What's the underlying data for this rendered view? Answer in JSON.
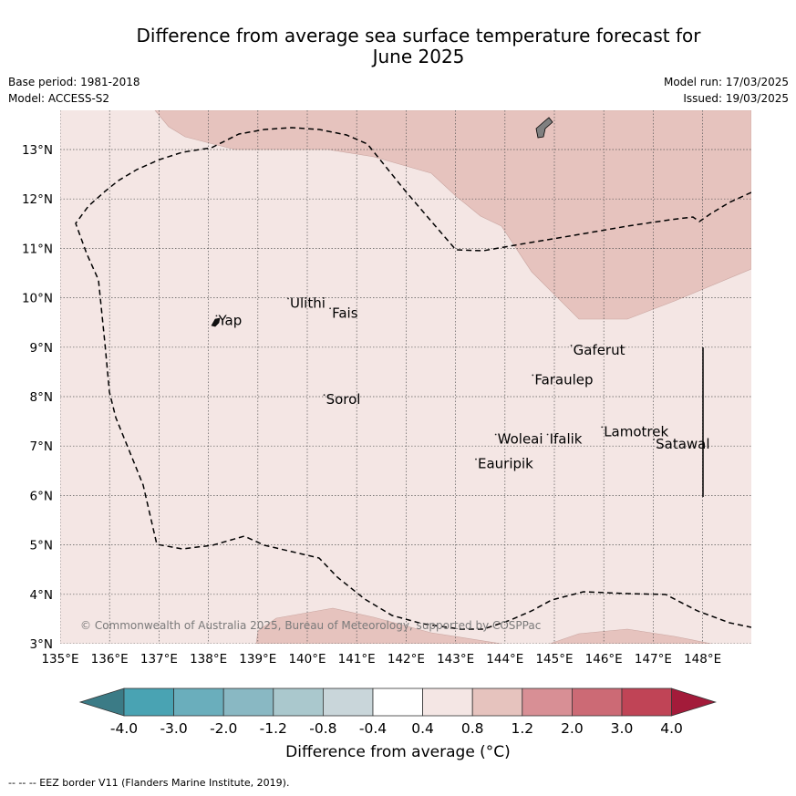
{
  "title_line1": "Difference from average sea surface temperature forecast for",
  "title_line2": "June 2025",
  "base_period": "Base period: 1981-2018",
  "model": "Model: ACCESS-S2",
  "model_run": "Model run: 17/03/2025",
  "issued": "Issued: 19/03/2025",
  "lat_labels": [
    "13°N",
    "12°N",
    "11°N",
    "10°N",
    "9°N",
    "8°N",
    "7°N",
    "6°N",
    "5°N",
    "4°N",
    "3°N"
  ],
  "lon_labels": [
    "135°E",
    "136°E",
    "137°E",
    "138°E",
    "139°E",
    "140°E",
    "141°E",
    "142°E",
    "143°E",
    "144°E",
    "145°E",
    "146°E",
    "147°E",
    "148°E"
  ],
  "places": [
    {
      "name": "Yap",
      "lon": 138.2,
      "lat": 9.45
    },
    {
      "name": "Ulithi",
      "lon": 139.65,
      "lat": 9.8
    },
    {
      "name": "Fais",
      "lon": 140.5,
      "lat": 9.6
    },
    {
      "name": "Gaferut",
      "lon": 145.38,
      "lat": 8.85
    },
    {
      "name": "Faraulep",
      "lon": 144.6,
      "lat": 8.25
    },
    {
      "name": "Sorol",
      "lon": 140.38,
      "lat": 7.85
    },
    {
      "name": "Woleai",
      "lon": 143.85,
      "lat": 7.05
    },
    {
      "name": "Ifalik",
      "lon": 144.9,
      "lat": 7.05
    },
    {
      "name": "Lamotrek",
      "lon": 146.0,
      "lat": 7.2
    },
    {
      "name": "Satawal",
      "lon": 147.05,
      "lat": 6.95
    },
    {
      "name": "Eauripik",
      "lon": 143.45,
      "lat": 6.55
    }
  ],
  "copyright": "© Commonwealth of Australia 2025, Bureau of Meteorology, supported by COSPPac",
  "colorbar": {
    "ticks": [
      "-4.0",
      "-3.0",
      "-2.0",
      "-1.2",
      "-0.8",
      "-0.4",
      "0.4",
      "0.8",
      "1.2",
      "2.0",
      "3.0",
      "4.0"
    ],
    "colors": [
      "#49a3b3",
      "#6aaebc",
      "#89b8c3",
      "#aac8cd",
      "#c9d6da",
      "#ffffff",
      "#f4e6e4",
      "#e6c3be",
      "#d88f95",
      "#cc6a75",
      "#c04456"
    ],
    "under_color": "#3b7b86",
    "over_color": "#a31b3a",
    "label": "Difference from average (°C)"
  },
  "legend_note": "--  --  -- EEZ border V11 (Flanders Marine Institute, 2019).",
  "colors": {
    "background_anomaly": "#f4e6e4",
    "warm_anomaly": "#e6c3be",
    "eez": "#000000"
  }
}
